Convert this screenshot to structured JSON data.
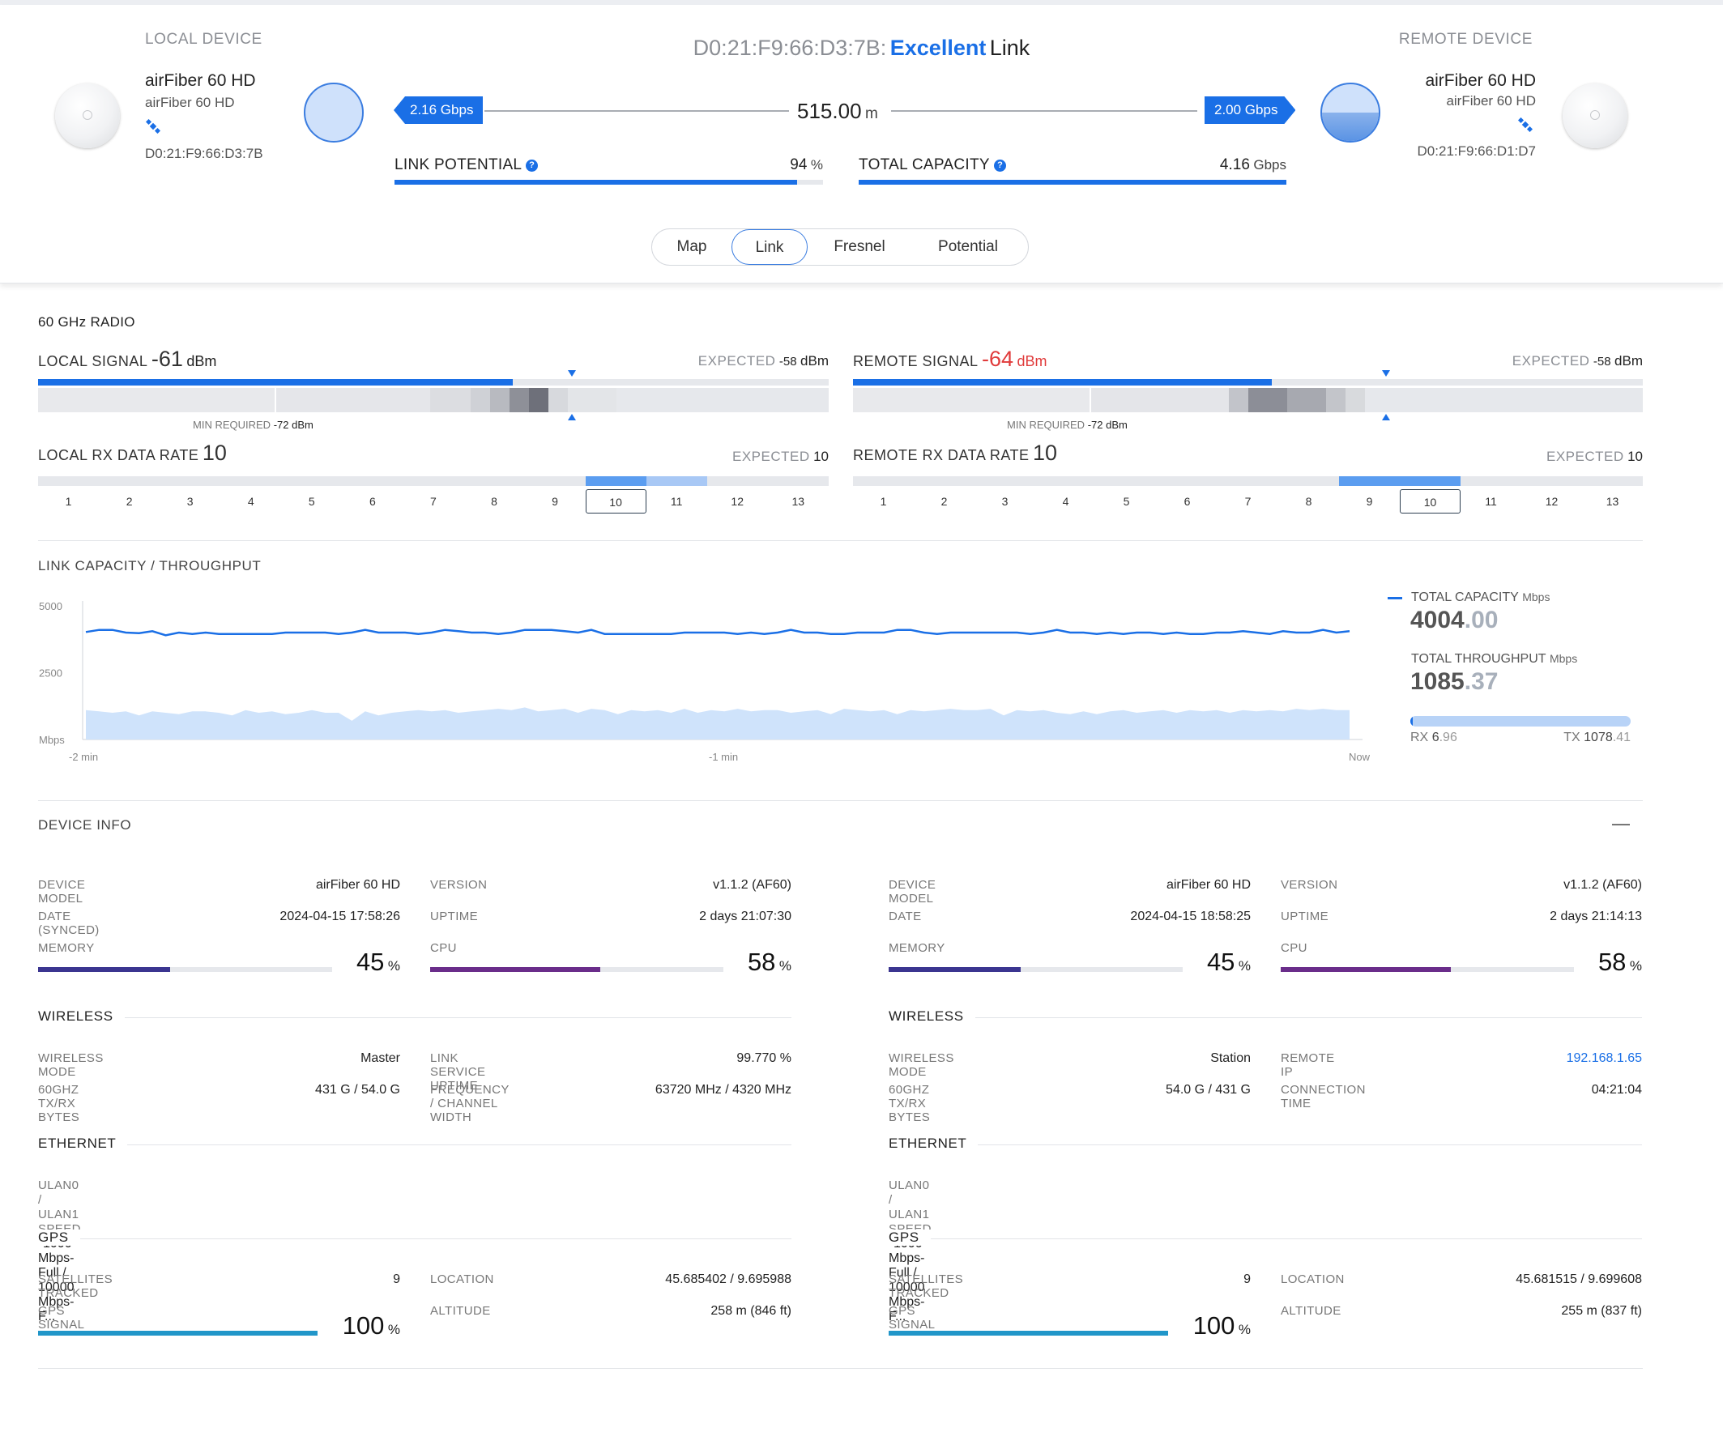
{
  "header": {
    "title_mac": "D0:21:F9:66:D3:7B:",
    "title_quality": "Excellent",
    "title_suffix": "Link",
    "distance": "515.00",
    "distance_unit": "m",
    "local_rate": "2.16 Gbps",
    "remote_rate": "2.00 Gbps",
    "local_bubble_level": 0.0,
    "remote_bubble_level": 0.5,
    "link_potential_label": "LINK POTENTIAL",
    "link_potential_value": "94",
    "link_potential_unit": "%",
    "link_potential_fraction": 0.94,
    "total_capacity_label": "TOTAL CAPACITY",
    "total_capacity_value": "4.16",
    "total_capacity_unit": "Gbps",
    "total_capacity_fraction": 1.0,
    "help_glyph": "?"
  },
  "local_device": {
    "heading": "LOCAL DEVICE",
    "name": "airFiber 60 HD",
    "model": "airFiber 60 HD",
    "mac": "D0:21:F9:66:D3:7B"
  },
  "remote_device": {
    "heading": "REMOTE DEVICE",
    "name": "airFiber 60 HD",
    "model": "airFiber 60 HD",
    "mac": "D0:21:F9:66:D1:D7"
  },
  "tabs": [
    "Map",
    "Link",
    "Fresnel",
    "Potential"
  ],
  "active_tab": "Link",
  "radio": {
    "section_title": "60 GHz RADIO",
    "local_signal": {
      "label": "LOCAL SIGNAL",
      "value": "-61",
      "unit": "dBm",
      "expected_label": "EXPECTED",
      "expected_value": "-58",
      "expected_unit": "dBm",
      "min_required_label": "MIN REQUIRED",
      "min_required_value": "-72 dBm",
      "fill_fraction": 0.6
    },
    "remote_signal": {
      "label": "REMOTE SIGNAL",
      "value": "-64",
      "unit": "dBm",
      "expected_label": "EXPECTED",
      "expected_value": "-58",
      "expected_unit": "dBm",
      "min_required_label": "MIN REQUIRED",
      "min_required_value": "-72 dBm",
      "fill_fraction": 0.53
    },
    "local_rx": {
      "label": "LOCAL RX DATA RATE",
      "value": "10",
      "expected_label": "EXPECTED",
      "expected_value": "10"
    },
    "remote_rx": {
      "label": "REMOTE RX DATA RATE",
      "value": "10",
      "expected_label": "EXPECTED",
      "expected_value": "10"
    },
    "rate_ticks": [
      "1",
      "2",
      "3",
      "4",
      "5",
      "6",
      "7",
      "8",
      "9",
      "10",
      "11",
      "12",
      "13"
    ]
  },
  "throughput": {
    "section_title": "LINK CAPACITY / THROUGHPUT",
    "capacity_label": "TOTAL CAPACITY",
    "capacity_unit": "Mbps",
    "capacity_int": "4004",
    "capacity_dec": ".00",
    "throughput_label": "TOTAL THROUGHPUT",
    "throughput_unit": "Mbps",
    "throughput_int": "1085",
    "throughput_dec": ".37",
    "rx_label": "RX",
    "rx_int": "6",
    "rx_dec": ".96",
    "tx_label": "TX",
    "tx_int": "1078",
    "tx_dec": ".41",
    "colors": {
      "capacity": "#1a6fe6",
      "throughput": "#cfe3fb"
    }
  },
  "chart_data": {
    "type": "area",
    "ylim": [
      0,
      5000
    ],
    "ytick_labels": [
      "5000",
      "2500"
    ],
    "ylabel": "Mbps",
    "xtick_labels": [
      "-2 min",
      "-1 min",
      "Now"
    ],
    "series": [
      {
        "name": "TOTAL CAPACITY",
        "values": [
          4020,
          4100,
          4100,
          4000,
          3980,
          4050,
          3900,
          4000,
          3950,
          4000,
          3950,
          3950,
          3950,
          3950,
          3950,
          4000,
          4000,
          4000,
          4000,
          3950,
          4000,
          4100,
          4000,
          4000,
          4000,
          3950,
          4000,
          4100,
          4050,
          4000,
          4000,
          3950,
          4000,
          4100,
          4100,
          4100,
          4050,
          4000,
          4100,
          3950,
          3950,
          3950,
          3950,
          3950,
          3950,
          4000,
          4000,
          4000,
          4000,
          3950,
          4000,
          3950,
          4000,
          4100,
          4000,
          4000,
          3950,
          3950,
          4000,
          4000,
          4000,
          4100,
          4100,
          4000,
          3950,
          4000,
          4000,
          4000,
          4000,
          4000,
          4000,
          3950,
          4000,
          4100,
          4000,
          4000,
          3950,
          4000,
          3950,
          4000,
          4000,
          3950,
          4000,
          3950,
          3950,
          4000,
          4000,
          4050,
          4000,
          3950,
          4050,
          4000,
          4000,
          4100,
          4000,
          4050
        ]
      },
      {
        "name": "TOTAL THROUGHPUT",
        "values": [
          1100,
          1050,
          1000,
          1050,
          900,
          1050,
          1000,
          950,
          1050,
          1050,
          1000,
          900,
          1100,
          1000,
          1050,
          950,
          1000,
          1100,
          1000,
          1000,
          700,
          1050,
          900,
          1000,
          1050,
          1100,
          1050,
          1100,
          1000,
          1050,
          1100,
          1150,
          1100,
          1200,
          1050,
          1100,
          1150,
          1000,
          1150,
          1100,
          950,
          1100,
          1050,
          1100,
          1000,
          1150,
          1000,
          1100,
          1050,
          1150,
          1050,
          1100,
          1100,
          1000,
          1050,
          1100,
          950,
          1150,
          1100,
          1050,
          1100,
          950,
          1100,
          1050,
          1100,
          1150,
          1100,
          1100,
          1150,
          900,
          1100,
          1050,
          1100,
          1000,
          950,
          1050,
          950,
          1050,
          1100,
          1000,
          1050,
          1100,
          1000,
          1100,
          1050,
          1100,
          1000,
          1100,
          1050,
          1100,
          1050,
          1150,
          1100,
          1150,
          1100,
          1100
        ]
      }
    ]
  },
  "device_info": {
    "section_title": "DEVICE INFO",
    "collapse_glyph": "—",
    "local": {
      "device_model_label": "DEVICE MODEL",
      "device_model": "airFiber 60 HD",
      "date_label": "DATE (SYNCED)",
      "date": "2024-04-15 17:58:26",
      "memory_label": "MEMORY",
      "memory": "45",
      "memory_unit": "%",
      "memory_fraction": 0.45,
      "version_label": "VERSION",
      "version": "v1.1.2 (AF60)",
      "uptime_label": "UPTIME",
      "uptime": "2 days 21:07:30",
      "cpu_label": "CPU",
      "cpu": "58",
      "cpu_unit": "%",
      "cpu_fraction": 0.58,
      "wireless_title": "WIRELESS",
      "wireless_mode_label": "WIRELESS MODE",
      "wireless_mode": "Master",
      "bytes_label": "60GHZ TX/RX BYTES",
      "bytes": "431 G / 54.0 G",
      "r1_label": "LINK SERVICE UPTIME",
      "r1_value": "99.770 %",
      "r2_label": "FREQUENCY / CHANNEL WIDTH",
      "r2_value": "63720 MHz / 4320 MHz",
      "ethernet_title": "ETHERNET",
      "ulan_label": "ULAN0 / ULAN1 SPEED",
      "ulan": "1000 Mbps-Full / 10000 Mbps-F...",
      "gps_title": "GPS",
      "sat_label": "SATELLITES TRACKED",
      "sat": "9",
      "gps_signal_label": "GPS SIGNAL",
      "gps_signal": "100",
      "gps_unit": "%",
      "gps_fraction": 1.0,
      "location_label": "LOCATION",
      "location": "45.685402 / 9.695988",
      "altitude_label": "ALTITUDE",
      "altitude": "258 m (846 ft)"
    },
    "remote": {
      "device_model_label": "DEVICE MODEL",
      "device_model": "airFiber 60 HD",
      "date_label": "DATE",
      "date": "2024-04-15 18:58:25",
      "memory_label": "MEMORY",
      "memory": "45",
      "memory_unit": "%",
      "memory_fraction": 0.45,
      "version_label": "VERSION",
      "version": "v1.1.2 (AF60)",
      "uptime_label": "UPTIME",
      "uptime": "2 days 21:14:13",
      "cpu_label": "CPU",
      "cpu": "58",
      "cpu_unit": "%",
      "cpu_fraction": 0.58,
      "wireless_title": "WIRELESS",
      "wireless_mode_label": "WIRELESS MODE",
      "wireless_mode": "Station",
      "bytes_label": "60GHZ TX/RX BYTES",
      "bytes": "54.0 G / 431 G",
      "r1_label": "REMOTE IP",
      "r1_value": "192.168.1.65",
      "r2_label": "CONNECTION TIME",
      "r2_value": "04:21:04",
      "ethernet_title": "ETHERNET",
      "ulan_label": "ULAN0 / ULAN1 SPEED",
      "ulan": "1000 Mbps-Full / 10000 Mbps-F...",
      "gps_title": "GPS",
      "sat_label": "SATELLITES TRACKED",
      "sat": "9",
      "gps_signal_label": "GPS SIGNAL",
      "gps_signal": "100",
      "gps_unit": "%",
      "gps_fraction": 1.0,
      "location_label": "LOCATION",
      "location": "45.681515 / 9.699608",
      "altitude_label": "ALTITUDE",
      "altitude": "255 m (837 ft)"
    },
    "colors": {
      "memory": "#3b3590",
      "cpu": "#6a2d8a",
      "gps": "#2196c9",
      "track": "#e6e8ec"
    }
  }
}
